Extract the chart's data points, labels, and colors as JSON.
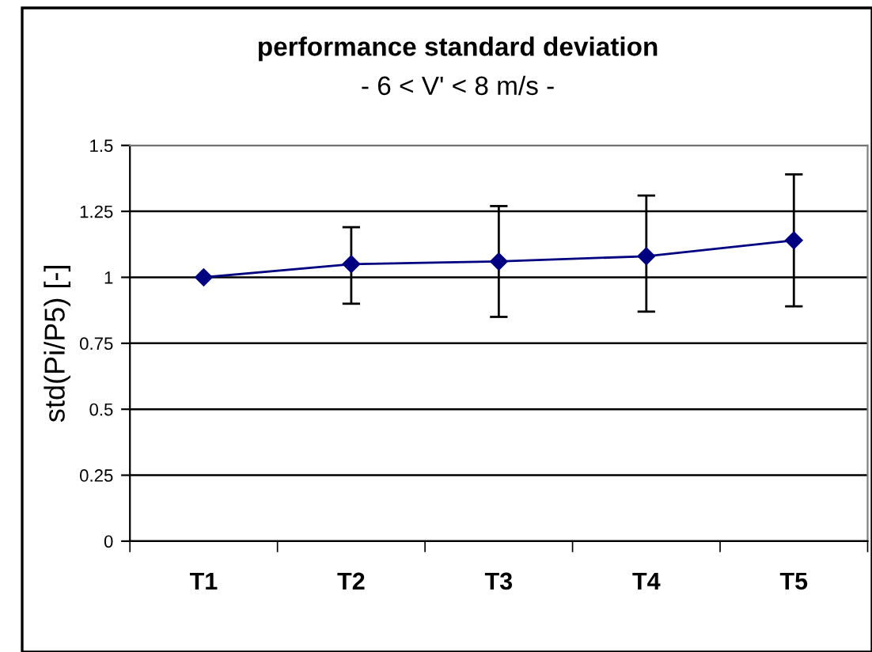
{
  "chart_data": {
    "type": "line",
    "title": "performance standard deviation",
    "subtitle": "- 6 < V' < 8 m/s -",
    "ylabel": "std(Pi/P5) [-]",
    "categories": [
      "T1",
      "T2",
      "T3",
      "T4",
      "T5"
    ],
    "series": [
      {
        "color": "#000080",
        "values": [
          1.0,
          1.05,
          1.06,
          1.08,
          1.14
        ],
        "errors": [
          null,
          [
            0.9,
            1.19
          ],
          [
            0.85,
            1.27
          ],
          [
            0.87,
            1.31
          ],
          [
            0.89,
            1.39
          ]
        ]
      }
    ],
    "ylim": [
      0,
      1.5
    ],
    "yticks": [
      0,
      0.25,
      0.5,
      0.75,
      1,
      1.25,
      1.5
    ],
    "grid": "y",
    "marker": "diamond",
    "line_style": "solid",
    "legend": false
  }
}
